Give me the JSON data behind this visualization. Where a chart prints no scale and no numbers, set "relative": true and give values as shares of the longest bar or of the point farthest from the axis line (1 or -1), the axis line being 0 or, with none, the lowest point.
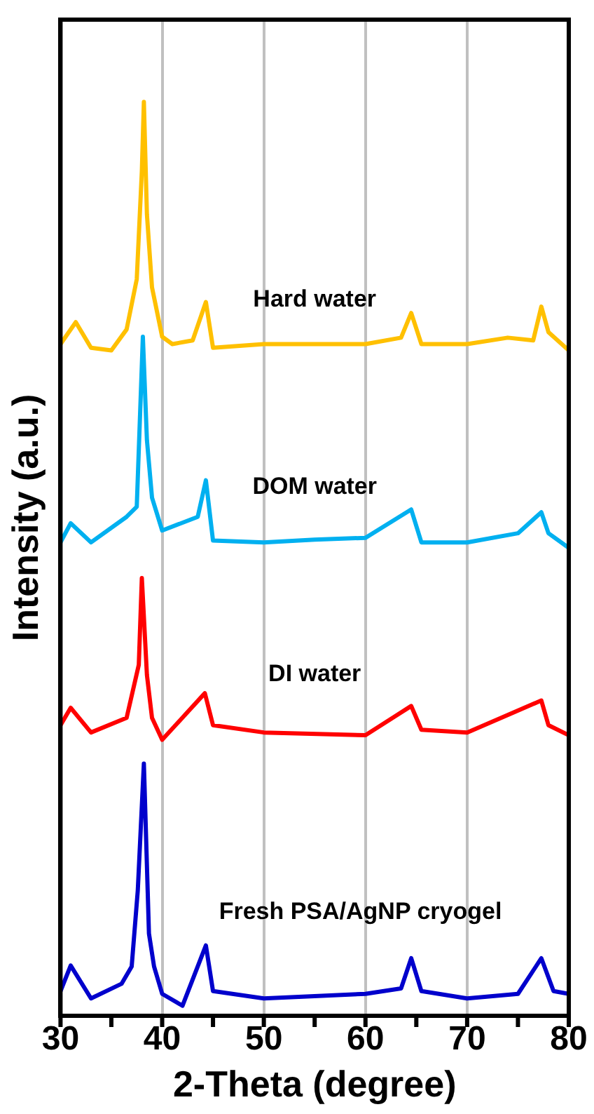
{
  "chart_data": {
    "type": "line",
    "relative": true,
    "xlabel": "2-Theta (degree)",
    "ylabel": "Intensity (a.u.)",
    "xlim": [
      30,
      80
    ],
    "xticks": [
      30,
      {
        "value": 35,
        "label": null
      },
      40,
      {
        "value": 45,
        "label": null
      },
      50,
      {
        "value": 55,
        "label": null
      },
      60,
      {
        "value": 65,
        "label": null
      },
      70,
      {
        "value": 75,
        "label": null
      },
      80
    ],
    "grid": "x",
    "legend": false,
    "marker": "none",
    "line_style": "solid",
    "series": [
      {
        "name": "Hard water",
        "color": "#ffc000",
        "x": [
          30,
          31.5,
          33,
          35,
          36.5,
          37.5,
          38,
          38.2,
          38.5,
          39,
          40,
          41,
          43,
          44.3,
          45,
          50,
          60,
          63.5,
          64.5,
          65.5,
          70,
          74,
          76.5,
          77.3,
          78,
          80
        ],
        "values": [
          0.735,
          0.759,
          0.731,
          0.728,
          0.751,
          0.806,
          0.924,
          1,
          0.877,
          0.797,
          0.743,
          0.735,
          0.739,
          0.781,
          0.731,
          0.735,
          0.735,
          0.742,
          0.769,
          0.735,
          0.735,
          0.742,
          0.739,
          0.776,
          0.748,
          0.728
        ]
      },
      {
        "name": "DOM water",
        "color": "#00b0f0",
        "x": [
          30,
          31,
          33,
          36.5,
          37.5,
          38.1,
          38.5,
          39,
          40,
          43.5,
          44.3,
          45,
          50,
          55,
          60,
          64.5,
          65.5,
          70,
          75,
          77.3,
          78,
          80
        ],
        "values": [
          0.518,
          0.539,
          0.518,
          0.546,
          0.557,
          0.743,
          0.63,
          0.567,
          0.531,
          0.546,
          0.586,
          0.52,
          0.518,
          0.521,
          0.523,
          0.554,
          0.518,
          0.518,
          0.528,
          0.551,
          0.528,
          0.512
        ]
      },
      {
        "name": "DI water",
        "color": "#ff0000",
        "x": [
          30,
          31,
          33,
          36.5,
          37.7,
          38,
          38.5,
          39,
          40,
          44.2,
          45,
          50,
          60,
          64.5,
          65.5,
          70,
          77.3,
          78,
          80
        ],
        "values": [
          0.318,
          0.337,
          0.31,
          0.326,
          0.384,
          0.479,
          0.373,
          0.326,
          0.302,
          0.353,
          0.318,
          0.31,
          0.307,
          0.339,
          0.313,
          0.31,
          0.345,
          0.318,
          0.307
        ]
      },
      {
        "name": "Fresh PSA/AgNP cryogel",
        "color": "#0000cc",
        "x": [
          30,
          31,
          33,
          36,
          37,
          37.6,
          38.2,
          38.7,
          39.2,
          40,
          42,
          44.3,
          45,
          50,
          60,
          63.5,
          64.5,
          65.5,
          70,
          75,
          77.3,
          78.5,
          80
        ],
        "values": [
          0.027,
          0.055,
          0.019,
          0.035,
          0.054,
          0.137,
          0.276,
          0.09,
          0.054,
          0.024,
          0.011,
          0.077,
          0.027,
          0.019,
          0.024,
          0.03,
          0.063,
          0.027,
          0.019,
          0.024,
          0.063,
          0.027,
          0.024
        ]
      }
    ]
  }
}
